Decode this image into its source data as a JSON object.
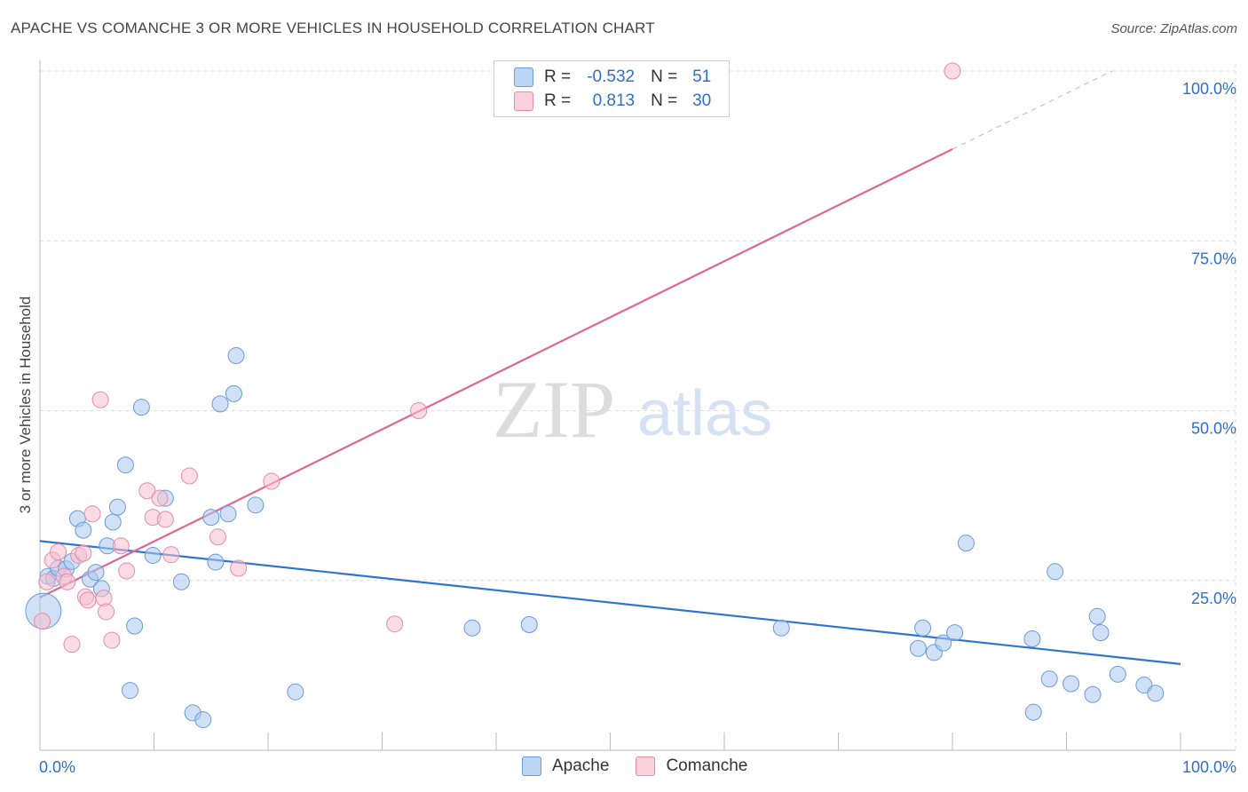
{
  "title": "APACHE VS COMANCHE 3 OR MORE VEHICLES IN HOUSEHOLD CORRELATION CHART",
  "source": "Source: ZipAtlas.com",
  "watermark": {
    "zip": "ZIP",
    "atlas": "atlas"
  },
  "colors": {
    "apache_fill": "#a9c8f0",
    "apache_stroke": "#6a9ad8",
    "apache_line": "#2f74d0",
    "comanche_fill": "#f7bfd0",
    "comanche_stroke": "#e88aa8",
    "comanche_line": "#e06890",
    "axis_label": "#2f6fc9",
    "grid": "#dddddd"
  },
  "legend": {
    "rows": [
      {
        "r_label": "R =",
        "r_value": "-0.532",
        "n_label": "N =",
        "n_value": "51"
      },
      {
        "r_label": "R =",
        "r_value": "0.813",
        "n_label": "N =",
        "n_value": "30"
      }
    ]
  },
  "bottom_legend": {
    "apache": "Apache",
    "comanche": "Comanche"
  },
  "chart_data": {
    "type": "scatter",
    "ylabel": "3 or more Vehicles in Household",
    "xlabel": "",
    "x_tick_labels": [
      "0.0%",
      "100.0%"
    ],
    "y_tick_labels": [
      "25.0%",
      "50.0%",
      "75.0%",
      "100.0%"
    ],
    "y_ticks": [
      25,
      50,
      75,
      100
    ],
    "xlim": [
      0,
      100
    ],
    "ylim": [
      0,
      100
    ],
    "series": [
      {
        "name": "Apache",
        "points": [
          [
            0.3,
            20.5
          ],
          [
            0.7,
            25.6
          ],
          [
            1.2,
            25.3
          ],
          [
            1.6,
            26.8
          ],
          [
            2.3,
            26.7
          ],
          [
            2.8,
            27.8
          ],
          [
            3.3,
            34.1
          ],
          [
            3.8,
            32.4
          ],
          [
            4.4,
            25.2
          ],
          [
            4.9,
            26.2
          ],
          [
            5.4,
            23.8
          ],
          [
            5.9,
            30.1
          ],
          [
            6.4,
            33.6
          ],
          [
            6.8,
            35.8
          ],
          [
            7.5,
            42.0
          ],
          [
            7.9,
            8.8
          ],
          [
            8.3,
            18.3
          ],
          [
            8.9,
            50.5
          ],
          [
            9.9,
            28.7
          ],
          [
            11.0,
            37.1
          ],
          [
            12.4,
            24.8
          ],
          [
            13.4,
            5.5
          ],
          [
            14.3,
            4.5
          ],
          [
            15.0,
            34.3
          ],
          [
            15.4,
            27.7
          ],
          [
            15.8,
            51.0
          ],
          [
            16.5,
            34.8
          ],
          [
            17.0,
            52.5
          ],
          [
            17.2,
            58.1
          ],
          [
            18.9,
            36.1
          ],
          [
            22.4,
            8.6
          ],
          [
            37.9,
            18.0
          ],
          [
            42.9,
            18.5
          ],
          [
            65.0,
            18.0
          ],
          [
            77.0,
            15.0
          ],
          [
            77.4,
            18.0
          ],
          [
            78.4,
            14.4
          ],
          [
            79.2,
            15.8
          ],
          [
            80.2,
            17.3
          ],
          [
            81.2,
            30.5
          ],
          [
            87.0,
            16.4
          ],
          [
            87.1,
            5.6
          ],
          [
            88.5,
            10.5
          ],
          [
            89.0,
            26.3
          ],
          [
            90.4,
            9.8
          ],
          [
            92.3,
            8.2
          ],
          [
            92.7,
            19.7
          ],
          [
            93.0,
            17.3
          ],
          [
            94.5,
            11.2
          ],
          [
            96.8,
            9.6
          ],
          [
            97.8,
            8.4
          ]
        ]
      },
      {
        "name": "Comanche",
        "points": [
          [
            0.2,
            19.0
          ],
          [
            0.6,
            24.8
          ],
          [
            1.1,
            28.0
          ],
          [
            1.6,
            29.2
          ],
          [
            2.1,
            25.6
          ],
          [
            2.4,
            24.8
          ],
          [
            2.8,
            15.6
          ],
          [
            3.4,
            28.7
          ],
          [
            3.8,
            29.0
          ],
          [
            4.0,
            22.6
          ],
          [
            4.2,
            22.1
          ],
          [
            4.6,
            34.8
          ],
          [
            5.3,
            51.6
          ],
          [
            5.6,
            22.4
          ],
          [
            5.8,
            20.4
          ],
          [
            6.3,
            16.2
          ],
          [
            7.1,
            30.1
          ],
          [
            7.6,
            26.4
          ],
          [
            9.4,
            38.2
          ],
          [
            9.9,
            34.3
          ],
          [
            10.5,
            37.1
          ],
          [
            11.0,
            34.0
          ],
          [
            11.5,
            28.8
          ],
          [
            13.1,
            40.4
          ],
          [
            15.6,
            31.4
          ],
          [
            17.4,
            26.8
          ],
          [
            20.3,
            39.6
          ],
          [
            31.1,
            18.6
          ],
          [
            33.2,
            50.0
          ],
          [
            80.0,
            100.0
          ]
        ]
      }
    ],
    "trend_lines": [
      {
        "name": "Apache",
        "x0": 0,
        "y0": 30.8,
        "x1": 100,
        "y1": 12.7
      },
      {
        "name": "Comanche",
        "x0": 0,
        "y0": 22.5,
        "x1": 80,
        "y1": 88.5,
        "dashed_to_x": 94,
        "dashed_to_y": 100
      }
    ]
  }
}
